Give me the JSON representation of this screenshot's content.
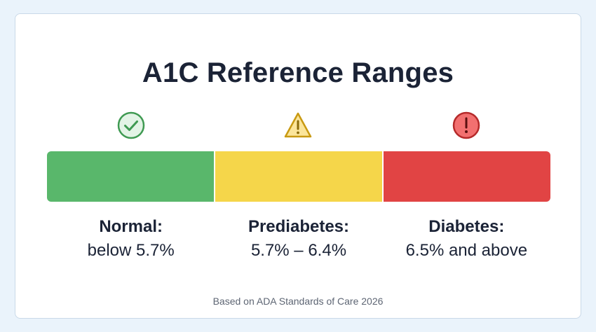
{
  "title": "A1C Reference Ranges",
  "colors": {
    "normal": "#59b76b",
    "prediabetes": "#f5d64a",
    "diabetes": "#e14444",
    "background": "#eaf3fb",
    "text": "#1b2336"
  },
  "ranges": [
    {
      "icon": "check-circle-icon",
      "name": "Normal:",
      "range": "below 5.7%"
    },
    {
      "icon": "warning-triangle-icon",
      "name": "Prediabetes:",
      "range": "5.7% – 6.4%"
    },
    {
      "icon": "exclamation-circle-icon",
      "name": "Diabetes:",
      "range": "6.5% and above"
    }
  ],
  "footnote": "Based on ADA Standards of Care 2026"
}
